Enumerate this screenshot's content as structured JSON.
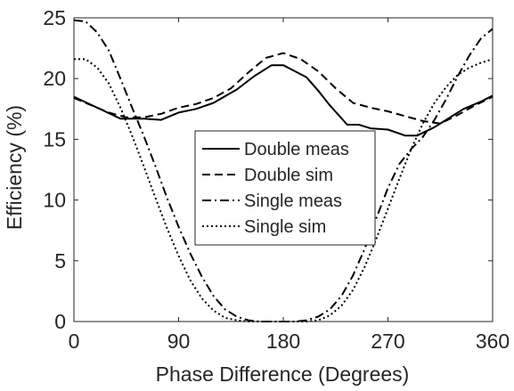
{
  "chart_data": {
    "type": "line",
    "title": "",
    "xlabel": "Phase Difference (Degrees)",
    "ylabel": "Efficiency  (%)",
    "xlim": [
      0,
      360
    ],
    "ylim": [
      0,
      25
    ],
    "xticks": [
      0,
      90,
      180,
      270,
      360
    ],
    "yticks": [
      0,
      5,
      10,
      15,
      20,
      25
    ],
    "grid": false,
    "legend_position": "center-right",
    "series": [
      {
        "name": "Double meas",
        "dash": "solid",
        "x": [
          0,
          20,
          40,
          60,
          75,
          90,
          105,
          120,
          140,
          155,
          170,
          180,
          190,
          200,
          210,
          220,
          235,
          245,
          255,
          270,
          285,
          295,
          310,
          320,
          335,
          350,
          360
        ],
        "y": [
          18.5,
          17.6,
          16.7,
          16.7,
          16.6,
          17.2,
          17.5,
          18.0,
          19.1,
          20.2,
          21.1,
          21.1,
          20.6,
          20.1,
          19.0,
          17.8,
          16.2,
          16.2,
          15.9,
          15.8,
          15.3,
          15.3,
          16.0,
          16.6,
          17.5,
          18.1,
          18.6
        ]
      },
      {
        "name": "Double sim",
        "dash": "dashed",
        "x": [
          0,
          15,
          30,
          45,
          60,
          75,
          90,
          105,
          120,
          135,
          150,
          165,
          180,
          195,
          210,
          225,
          240,
          255,
          270,
          285,
          300,
          315,
          330,
          345,
          360
        ],
        "y": [
          18.4,
          17.8,
          17.2,
          16.8,
          16.8,
          17.1,
          17.6,
          17.9,
          18.4,
          19.2,
          20.5,
          21.7,
          22.1,
          21.6,
          20.6,
          19.2,
          18.0,
          17.6,
          17.3,
          16.9,
          16.5,
          16.3,
          17.0,
          17.8,
          18.5
        ]
      },
      {
        "name": "Single meas",
        "dash": "dashdot",
        "x": [
          0,
          10,
          20,
          30,
          40,
          50,
          60,
          70,
          80,
          90,
          100,
          110,
          120,
          130,
          140,
          150,
          160,
          170,
          180,
          190,
          200,
          210,
          220,
          230,
          240,
          250,
          260,
          270,
          280,
          290,
          300,
          310,
          320,
          330,
          340,
          350,
          360
        ],
        "y": [
          24.8,
          24.7,
          23.8,
          22.3,
          20.0,
          17.6,
          15.3,
          12.8,
          10.2,
          7.8,
          5.6,
          3.7,
          2.1,
          1.0,
          0.4,
          0.1,
          0.0,
          0.0,
          0.0,
          0.0,
          0.1,
          0.4,
          1.0,
          2.1,
          3.8,
          6.0,
          8.5,
          11.0,
          13.0,
          14.2,
          15.2,
          16.6,
          18.3,
          20.2,
          21.9,
          23.3,
          24.1
        ]
      },
      {
        "name": "Single sim",
        "dash": "dotted",
        "x": [
          0,
          10,
          20,
          30,
          40,
          50,
          60,
          70,
          80,
          90,
          100,
          110,
          120,
          130,
          140,
          150,
          160,
          170,
          180,
          190,
          200,
          210,
          220,
          230,
          240,
          250,
          260,
          270,
          280,
          290,
          300,
          310,
          320,
          330,
          340,
          350,
          360
        ],
        "y": [
          21.6,
          21.6,
          20.9,
          19.6,
          17.6,
          15.3,
          12.8,
          10.2,
          7.7,
          5.4,
          3.4,
          1.9,
          0.9,
          0.3,
          0.1,
          0.0,
          0.0,
          0.0,
          0.0,
          0.0,
          0.0,
          0.1,
          0.5,
          1.3,
          2.6,
          4.5,
          6.8,
          9.3,
          11.8,
          14.2,
          16.3,
          18.0,
          19.3,
          20.3,
          20.9,
          21.3,
          21.6
        ]
      }
    ]
  }
}
